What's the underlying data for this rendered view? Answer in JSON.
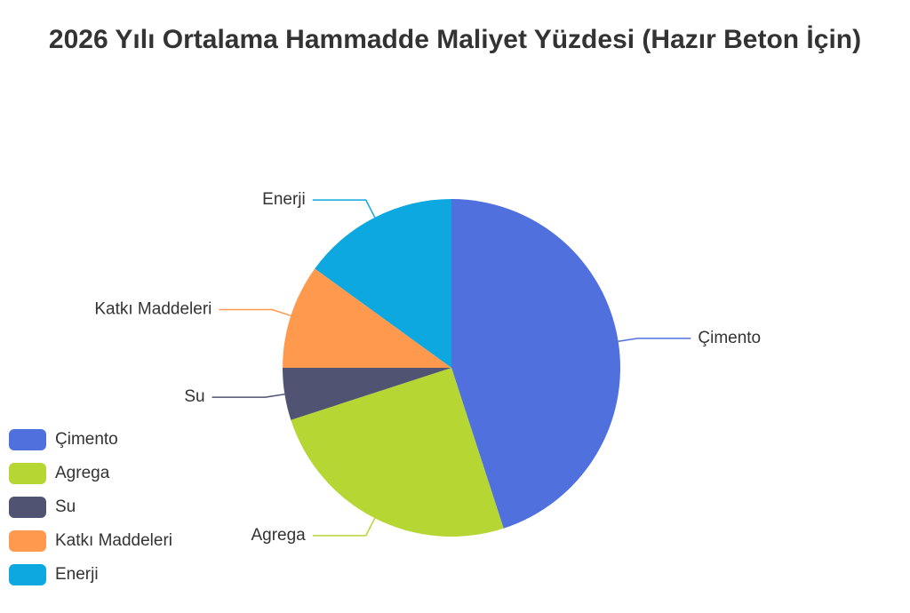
{
  "chart_data": {
    "type": "pie",
    "title": "2026 Yılı Ortalama Hammadde Maliyet Yüzdesi (Hazır Beton İçin)",
    "categories": [
      "Çimento",
      "Agrega",
      "Su",
      "Katkı Maddeleri",
      "Enerji"
    ],
    "values": [
      45,
      25,
      5,
      10,
      15
    ],
    "colors": [
      "#5070DD",
      "#B6D634",
      "#505372",
      "#FF994D",
      "#0CA8DF"
    ],
    "legend_position": "bottom-left"
  }
}
